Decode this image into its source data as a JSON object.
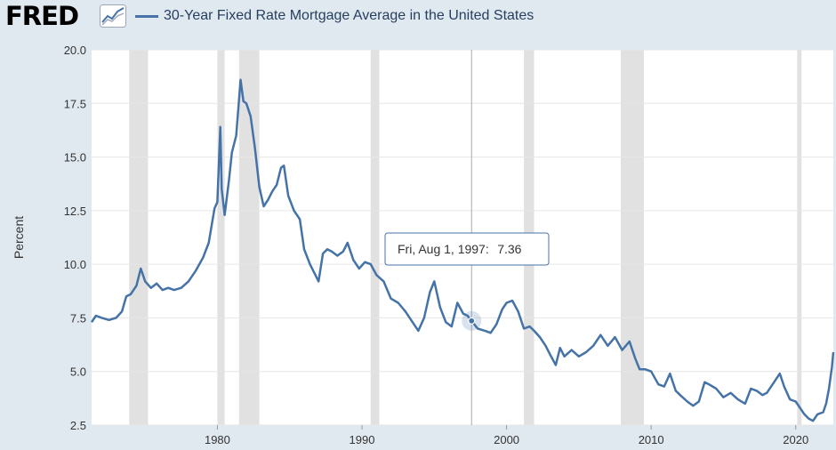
{
  "header": {
    "logo_text": "FRED",
    "logo_icon": "line-chart-icon"
  },
  "colors": {
    "series": "#4572a7",
    "recession": "#e1e1e1",
    "gridline": "#e6e6e6",
    "background": "#e1e9f0"
  },
  "tooltip": {
    "date_label": "Fri, Aug 1, 1997:",
    "value_label": "7.36"
  },
  "chart_data": {
    "type": "line",
    "title": "",
    "xlabel": "",
    "ylabel": "Percent",
    "xlim": [
      1971.3,
      2022.6
    ],
    "ylim": [
      2.5,
      20.0
    ],
    "x_ticks": [
      1980,
      1990,
      2000,
      2010,
      2020
    ],
    "x_tick_labels": [
      "1980",
      "1990",
      "2000",
      "2010",
      "2020"
    ],
    "y_ticks": [
      2.5,
      5.0,
      7.5,
      10.0,
      12.5,
      15.0,
      17.5,
      20.0
    ],
    "y_tick_labels": [
      "2.5",
      "5.0",
      "7.5",
      "10.0",
      "12.5",
      "15.0",
      "17.5",
      "20.0"
    ],
    "grid": true,
    "legend": "top-left",
    "recessions": [
      [
        1973.9,
        1975.2
      ],
      [
        1980.0,
        1980.5
      ],
      [
        1981.5,
        1982.9
      ],
      [
        1990.6,
        1991.2
      ],
      [
        2001.2,
        2001.9
      ],
      [
        2007.9,
        2009.5
      ],
      [
        2020.1,
        2020.4
      ]
    ],
    "highlight": {
      "x": 1997.58,
      "y": 7.36
    },
    "series": [
      {
        "name": "30-Year Fixed Rate Mortgage Average in the United States",
        "x": [
          1971.3,
          1971.6,
          1972.0,
          1972.5,
          1973.0,
          1973.4,
          1973.7,
          1974.0,
          1974.4,
          1974.7,
          1975.0,
          1975.4,
          1975.8,
          1976.2,
          1976.6,
          1977.0,
          1977.5,
          1978.0,
          1978.5,
          1979.0,
          1979.4,
          1979.8,
          1980.0,
          1980.2,
          1980.3,
          1980.5,
          1980.8,
          1981.0,
          1981.3,
          1981.6,
          1981.8,
          1982.0,
          1982.3,
          1982.6,
          1982.9,
          1983.2,
          1983.5,
          1983.8,
          1984.1,
          1984.4,
          1984.6,
          1984.9,
          1985.3,
          1985.7,
          1986.0,
          1986.4,
          1986.7,
          1987.0,
          1987.3,
          1987.6,
          1987.9,
          1988.3,
          1988.7,
          1989.0,
          1989.4,
          1989.8,
          1990.2,
          1990.6,
          1991.0,
          1991.5,
          1992.0,
          1992.5,
          1993.0,
          1993.5,
          1993.9,
          1994.3,
          1994.7,
          1995.0,
          1995.4,
          1995.8,
          1996.2,
          1996.6,
          1997.0,
          1997.3,
          1997.58,
          1998.0,
          1998.5,
          1998.9,
          1999.3,
          1999.7,
          2000.0,
          2000.4,
          2000.8,
          2001.2,
          2001.6,
          2001.9,
          2002.3,
          2002.7,
          2003.0,
          2003.4,
          2003.7,
          2004.0,
          2004.5,
          2005.0,
          2005.5,
          2006.0,
          2006.5,
          2007.0,
          2007.5,
          2008.0,
          2008.5,
          2008.9,
          2009.2,
          2009.6,
          2010.0,
          2010.5,
          2010.9,
          2011.3,
          2011.7,
          2012.0,
          2012.5,
          2012.9,
          2013.3,
          2013.7,
          2014.0,
          2014.5,
          2015.0,
          2015.5,
          2016.0,
          2016.5,
          2016.9,
          2017.3,
          2017.7,
          2018.0,
          2018.5,
          2018.9,
          2019.2,
          2019.6,
          2020.0,
          2020.3,
          2020.6,
          2020.9,
          2021.2,
          2021.5,
          2021.9,
          2022.1,
          2022.3,
          2022.5,
          2022.6
        ],
        "y": [
          7.3,
          7.6,
          7.5,
          7.4,
          7.5,
          7.8,
          8.5,
          8.6,
          9.0,
          9.8,
          9.2,
          8.9,
          9.1,
          8.8,
          8.9,
          8.8,
          8.9,
          9.2,
          9.7,
          10.3,
          11.0,
          12.6,
          12.9,
          16.4,
          13.5,
          12.3,
          13.9,
          15.2,
          16.0,
          18.6,
          17.6,
          17.5,
          16.9,
          15.4,
          13.6,
          12.7,
          13.0,
          13.4,
          13.7,
          14.5,
          14.6,
          13.2,
          12.5,
          12.1,
          10.7,
          10.0,
          9.6,
          9.2,
          10.5,
          10.7,
          10.6,
          10.4,
          10.6,
          11.0,
          10.2,
          9.8,
          10.1,
          10.0,
          9.5,
          9.2,
          8.4,
          8.2,
          7.8,
          7.3,
          6.9,
          7.5,
          8.7,
          9.2,
          8.0,
          7.3,
          7.1,
          8.2,
          7.7,
          7.6,
          7.36,
          7.0,
          6.9,
          6.8,
          7.2,
          7.9,
          8.2,
          8.3,
          7.8,
          7.0,
          7.1,
          6.9,
          6.6,
          6.2,
          5.8,
          5.3,
          6.1,
          5.7,
          6.0,
          5.7,
          5.9,
          6.2,
          6.7,
          6.2,
          6.6,
          6.0,
          6.4,
          5.6,
          5.1,
          5.1,
          5.0,
          4.4,
          4.3,
          4.9,
          4.1,
          3.9,
          3.6,
          3.4,
          3.6,
          4.5,
          4.4,
          4.2,
          3.8,
          4.0,
          3.7,
          3.5,
          4.2,
          4.1,
          3.9,
          4.0,
          4.5,
          4.9,
          4.3,
          3.7,
          3.6,
          3.3,
          3.0,
          2.8,
          2.7,
          3.0,
          3.1,
          3.5,
          4.2,
          5.2,
          5.9
        ]
      }
    ]
  }
}
